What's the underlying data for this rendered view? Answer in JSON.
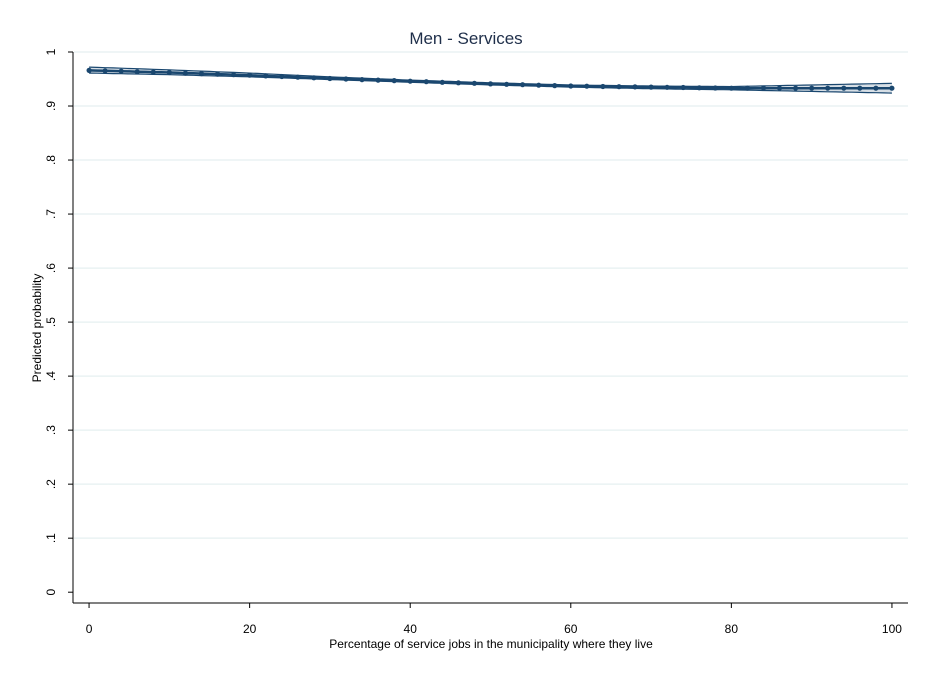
{
  "chart_data": {
    "type": "line",
    "title": "Men - Services",
    "xlabel": "Percentage of service jobs in the municipality where they live",
    "ylabel": "Predicted probability",
    "xlim": [
      -2,
      102
    ],
    "ylim": [
      -0.02,
      1.0
    ],
    "x_ticks": [
      0,
      20,
      40,
      60,
      80,
      100
    ],
    "x_tick_labels": [
      "0",
      "20",
      "40",
      "60",
      "80",
      "100"
    ],
    "y_ticks": [
      0,
      0.1,
      0.2,
      0.3,
      0.4,
      0.5,
      0.6,
      0.7,
      0.8,
      0.9,
      1
    ],
    "y_tick_labels": [
      "0",
      ".1",
      ".2",
      ".3",
      ".4",
      ".5",
      ".6",
      ".7",
      ".8",
      ".9",
      "1"
    ],
    "grid": true,
    "legend": "none",
    "colors": {
      "line": "#1a476f",
      "ci": "#1a476f",
      "grid": "#eaf2f3",
      "axis": "#000000",
      "title": "#1f2f4a"
    },
    "series": [
      {
        "x": [
          0,
          10,
          20,
          30,
          40,
          50,
          60,
          70,
          80,
          90,
          100
        ],
        "values": [
          0.966,
          0.962,
          0.957,
          0.951,
          0.946,
          0.941,
          0.937,
          0.935,
          0.933,
          0.933,
          0.933
        ],
        "ci_lower": [
          0.961,
          0.958,
          0.954,
          0.949,
          0.944,
          0.939,
          0.935,
          0.932,
          0.93,
          0.927,
          0.924
        ],
        "ci_upper": [
          0.972,
          0.967,
          0.961,
          0.954,
          0.948,
          0.943,
          0.939,
          0.937,
          0.936,
          0.939,
          0.942
        ]
      }
    ]
  }
}
